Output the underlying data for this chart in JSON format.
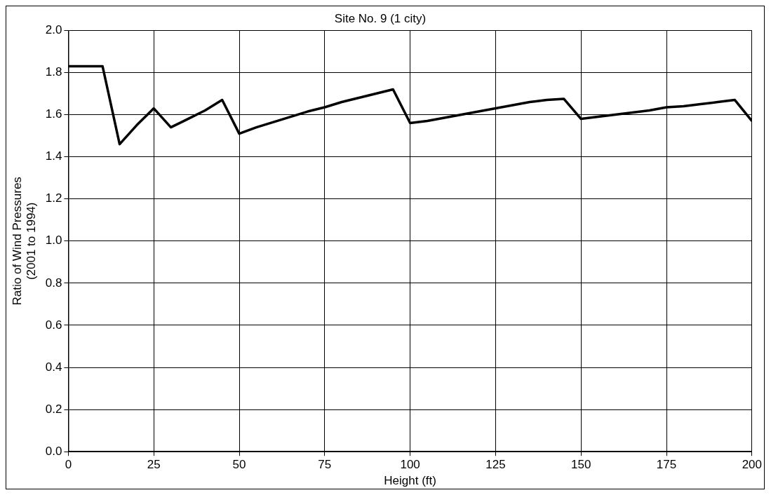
{
  "chart_data": {
    "type": "line",
    "title": "Site No. 9 (1 city)",
    "xlabel": "Height (ft)",
    "ylabel": "Ratio of Wind Pressures\n(2001 to 1994)",
    "x": [
      0,
      5,
      10,
      15,
      20,
      25,
      30,
      35,
      40,
      45,
      50,
      55,
      60,
      65,
      70,
      75,
      80,
      85,
      90,
      95,
      100,
      105,
      110,
      115,
      120,
      125,
      130,
      135,
      140,
      145,
      150,
      155,
      160,
      165,
      170,
      175,
      180,
      185,
      190,
      195,
      200
    ],
    "series": [
      {
        "color": "#000000",
        "values": [
          1.83,
          1.83,
          1.83,
          1.46,
          1.55,
          1.63,
          1.54,
          1.58,
          1.62,
          1.67,
          1.51,
          1.54,
          1.565,
          1.59,
          1.615,
          1.635,
          1.66,
          1.68,
          1.7,
          1.72,
          1.56,
          1.57,
          1.585,
          1.6,
          1.615,
          1.63,
          1.645,
          1.66,
          1.67,
          1.675,
          1.58,
          1.59,
          1.6,
          1.61,
          1.62,
          1.635,
          1.64,
          1.65,
          1.66,
          1.67,
          1.57
        ]
      }
    ],
    "xlim": [
      0,
      200
    ],
    "xticks": [
      0,
      25,
      50,
      75,
      100,
      125,
      150,
      175,
      200
    ],
    "ylim": [
      0,
      2
    ],
    "yticks": [
      {
        "value": 0,
        "label": "0.0"
      },
      {
        "value": 0.2,
        "label": "0.2"
      },
      {
        "value": 0.4,
        "label": "0.4"
      },
      {
        "value": 0.6,
        "label": "0.6"
      },
      {
        "value": 0.8,
        "label": "0.8"
      },
      {
        "value": 1,
        "label": "1.0"
      },
      {
        "value": 1.2,
        "label": "1.2"
      },
      {
        "value": 1.4,
        "label": "1.4"
      },
      {
        "value": 1.6,
        "label": "1.6"
      },
      {
        "value": 1.8,
        "label": "1.8"
      },
      {
        "value": 2,
        "label": "2.0"
      }
    ],
    "grid": true,
    "legend": false,
    "marker": "none",
    "line_style": "solid"
  }
}
